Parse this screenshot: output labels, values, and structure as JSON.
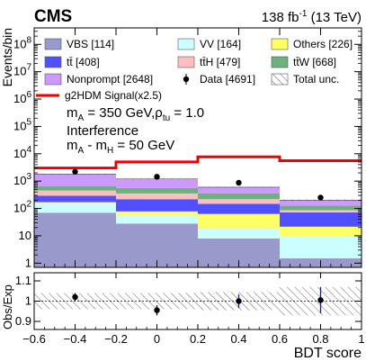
{
  "header": {
    "experiment": "CMS",
    "lumi_value": "138",
    "lumi_unit": "fb",
    "lumi_exp": "-1",
    "lumi_energy": "(13 TeV)"
  },
  "annotations": {
    "mass_line_a": "m",
    "mass_line_a_sub": "A",
    "mass_line_a_rest": " = 350 GeV,",
    "rho_symbol": "ρ",
    "rho_sub": "tu",
    "rho_value": " = 1.0",
    "interference": "Interference",
    "mass_diff_m1": "m",
    "mass_diff_sub1": "A",
    "mass_diff_mid": " - m",
    "mass_diff_sub2": "H",
    "mass_diff_rest": " = 50 GeV"
  },
  "chart_data": [
    {
      "type": "bar",
      "stacked": true,
      "scale": "log",
      "x_edges": [
        -0.6,
        -0.2,
        0.2,
        0.6,
        1.0
      ],
      "xlim": [
        -0.6,
        1.0
      ],
      "ylim": [
        0.7,
        400000000
      ],
      "ylabel": "Events/bin",
      "y_ticks": [
        1,
        10,
        100,
        1000,
        10000,
        100000,
        1000000,
        10000000,
        100000000
      ],
      "y_tick_labels": [
        "1",
        "10",
        "10^2",
        "10^3",
        "10^4",
        "10^5",
        "10^6",
        "10^7",
        "10^8"
      ],
      "series": [
        {
          "name": "VBS",
          "yield": "114",
          "color": "#9999cc",
          "values": [
            70,
            28,
            8,
            1.5
          ]
        },
        {
          "name": "VV",
          "yield": "164",
          "color": "#ccffff",
          "values": [
            80,
            25,
            10,
            8
          ]
        },
        {
          "name": "Others",
          "yield": "226",
          "color": "#ffff66",
          "values": [
            20,
            25,
            45,
            12
          ]
        },
        {
          "name": "tt̄",
          "yield": "408",
          "color": "#5050ff",
          "values": [
            120,
            140,
            85,
            50
          ]
        },
        {
          "name": "tt̄H",
          "yield": "479",
          "color": "#ffbfbf",
          "values": [
            160,
            135,
            70,
            14
          ]
        },
        {
          "name": "tt̄W",
          "yield": "668",
          "color": "#6fb07f",
          "values": [
            210,
            207,
            142,
            40
          ]
        },
        {
          "name": "Nonprompt",
          "yield": "2648",
          "color": "#cc99ff",
          "values": [
            1140,
            640,
            240,
            74
          ]
        }
      ],
      "signal": {
        "name": "g2HDM Signal(x2.5)",
        "color": "#ee0000",
        "values": [
          3000,
          5000,
          7700,
          5600
        ]
      },
      "data": {
        "name": "Data",
        "yield": "4691",
        "x": [
          -0.4,
          0.0,
          0.4,
          0.8
        ],
        "values": [
          2200,
          1440,
          870,
          250
        ]
      },
      "uncertainty": {
        "name": "Total unc."
      },
      "legend_placement": "top",
      "legend_order": [
        {
          "name": "VBS",
          "yield": "114",
          "kind": "fill",
          "color": "#9999cc"
        },
        {
          "name": "VV",
          "yield": "164",
          "kind": "fill",
          "color": "#ccffff"
        },
        {
          "name": "Others",
          "yield": "226",
          "kind": "fill",
          "color": "#ffff66"
        },
        {
          "name": "tt̄",
          "yield": "408",
          "kind": "fill",
          "color": "#5050ff"
        },
        {
          "name": "tt̄H",
          "yield": "479",
          "kind": "fill",
          "color": "#ffbfbf"
        },
        {
          "name": "tt̄W",
          "yield": "668",
          "kind": "fill",
          "color": "#6fb07f"
        },
        {
          "name": "Nonprompt",
          "yield": "2648",
          "kind": "fill",
          "color": "#cc99ff"
        },
        {
          "name": "Data",
          "yield": "4691",
          "kind": "marker",
          "color": "#000000"
        },
        {
          "name": "Total unc.",
          "yield": "",
          "kind": "hatch",
          "color": "#555555"
        },
        {
          "name": "g2HDM Signal(x2.5)",
          "yield": "",
          "kind": "line",
          "color": "#ee0000"
        }
      ]
    },
    {
      "type": "scatter",
      "panel": "ratio",
      "xlabel": "BDT score",
      "ylabel": "Obs/Exp",
      "xlim": [
        -0.6,
        1.0
      ],
      "ylim": [
        0.86,
        1.14
      ],
      "x_ticks": [
        -0.6,
        -0.4,
        -0.2,
        0,
        0.2,
        0.4,
        0.6,
        0.8,
        1.0
      ],
      "x_tick_labels": [
        "−0.6",
        "−0.4",
        "−0.2",
        "0",
        "0.2",
        "0.4",
        "0.6",
        "0.8",
        "1"
      ],
      "y_ticks": [
        0.9,
        1.0,
        1.1
      ],
      "y_tick_labels": [
        "0.9",
        "1",
        "1.1"
      ],
      "x": [
        -0.4,
        0.0,
        0.4,
        0.8
      ],
      "values": [
        1.02,
        0.955,
        1.0,
        1.005
      ],
      "errors": [
        0.02,
        0.025,
        0.034,
        0.065
      ],
      "unc_band_halfwidth": [
        0.04,
        0.04,
        0.045,
        0.07
      ],
      "reference_line": 1.0
    }
  ]
}
